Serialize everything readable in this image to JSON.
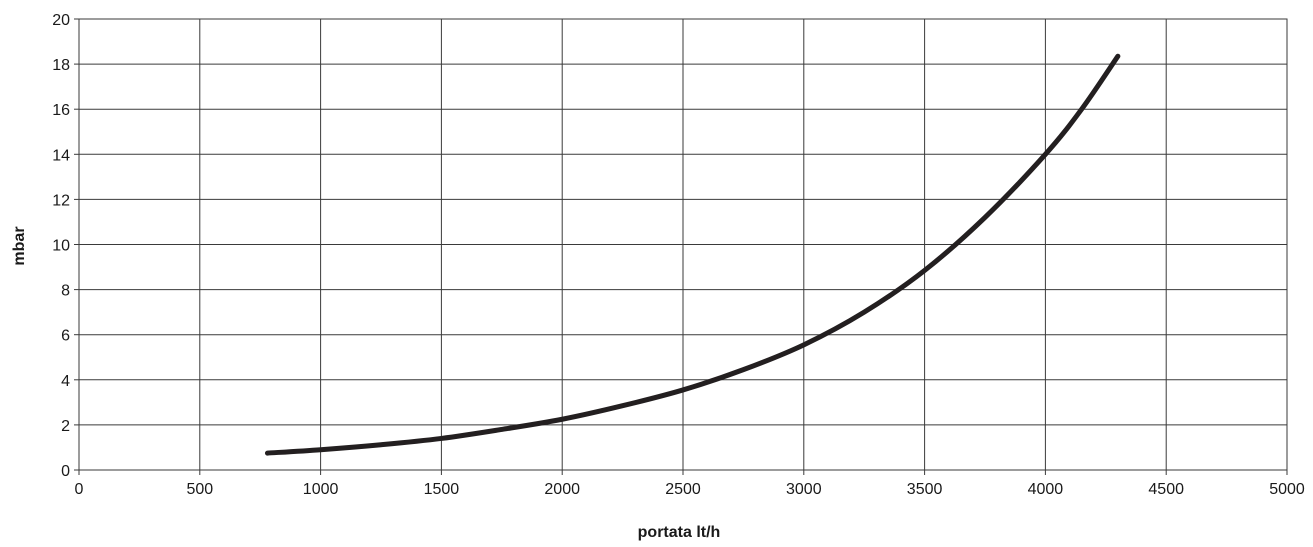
{
  "chart_data": {
    "type": "line",
    "title": "",
    "xlabel": "portata lt/h",
    "ylabel": "mbar",
    "xlim": [
      0,
      5000
    ],
    "ylim": [
      0,
      20
    ],
    "x_ticks": [
      0,
      500,
      1000,
      1500,
      2000,
      2500,
      3000,
      3500,
      4000,
      4500,
      5000
    ],
    "y_ticks": [
      0,
      2,
      4,
      6,
      8,
      10,
      12,
      14,
      16,
      18,
      20
    ],
    "grid": true,
    "legend": "none",
    "series": [
      {
        "color": "#231f20",
        "x": [
          780,
          1000,
          1250,
          1500,
          1750,
          2000,
          2250,
          2500,
          2750,
          3000,
          3250,
          3500,
          3750,
          4000,
          4150,
          4300
        ],
        "y": [
          0.75,
          0.9,
          1.12,
          1.4,
          1.8,
          2.25,
          2.85,
          3.55,
          4.45,
          5.55,
          7.0,
          8.85,
          11.2,
          14.0,
          16.0,
          18.35
        ]
      }
    ]
  }
}
